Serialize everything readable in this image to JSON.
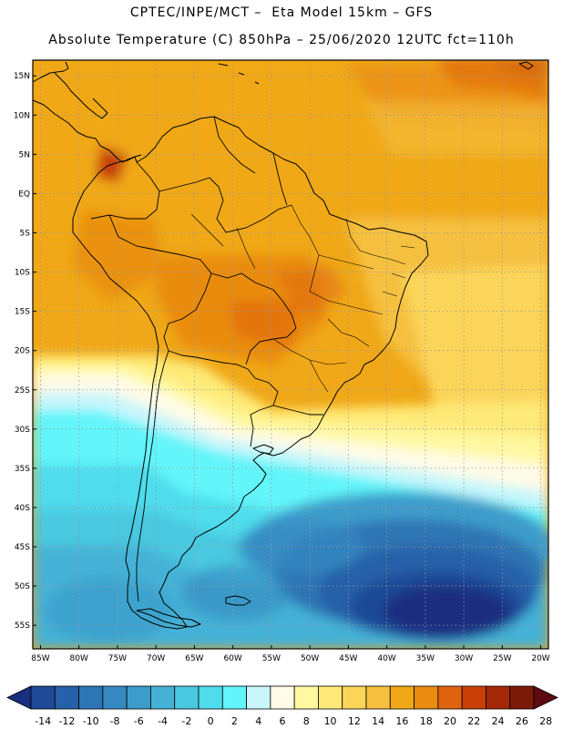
{
  "header": {
    "line1": "CPTEC/INPE/MCT –  Eta Model 15km – GFS",
    "line2": "Absolute Temperature (C) 850hPa – 25/06/2020 12UTC fct=110h"
  },
  "map": {
    "lon_range": [
      -86,
      -19
    ],
    "lat_range": [
      -58,
      17
    ],
    "lat_ticks": [
      "15N",
      "10N",
      "5N",
      "EQ",
      "5S",
      "10S",
      "15S",
      "20S",
      "25S",
      "30S",
      "35S",
      "40S",
      "45S",
      "50S",
      "55S"
    ],
    "lon_ticks": [
      "85W",
      "80W",
      "75W",
      "70W",
      "65W",
      "60W",
      "55W",
      "50W",
      "45W",
      "40W",
      "35W",
      "30W",
      "25W",
      "20W"
    ]
  },
  "colorbar": {
    "labels": [
      "-14",
      "-12",
      "-10",
      "-8",
      "-6",
      "-4",
      "-2",
      "0",
      "2",
      "4",
      "6",
      "8",
      "10",
      "12",
      "14",
      "16",
      "18",
      "20",
      "22",
      "24",
      "26",
      "28"
    ],
    "colors": [
      "#1a2e80",
      "#1f4a96",
      "#2561a8",
      "#2d75b4",
      "#3589c0",
      "#3c9ccb",
      "#45b1d6",
      "#4ac8e0",
      "#4fdcec",
      "#62f5fa",
      "#c8f6fb",
      "#fffbe6",
      "#fff8a0",
      "#feea78",
      "#fbd55a",
      "#f5c040",
      "#f0a818",
      "#e98c10",
      "#e06410",
      "#c84008",
      "#a52808",
      "#7c1a08",
      "#5e0a10"
    ]
  }
}
